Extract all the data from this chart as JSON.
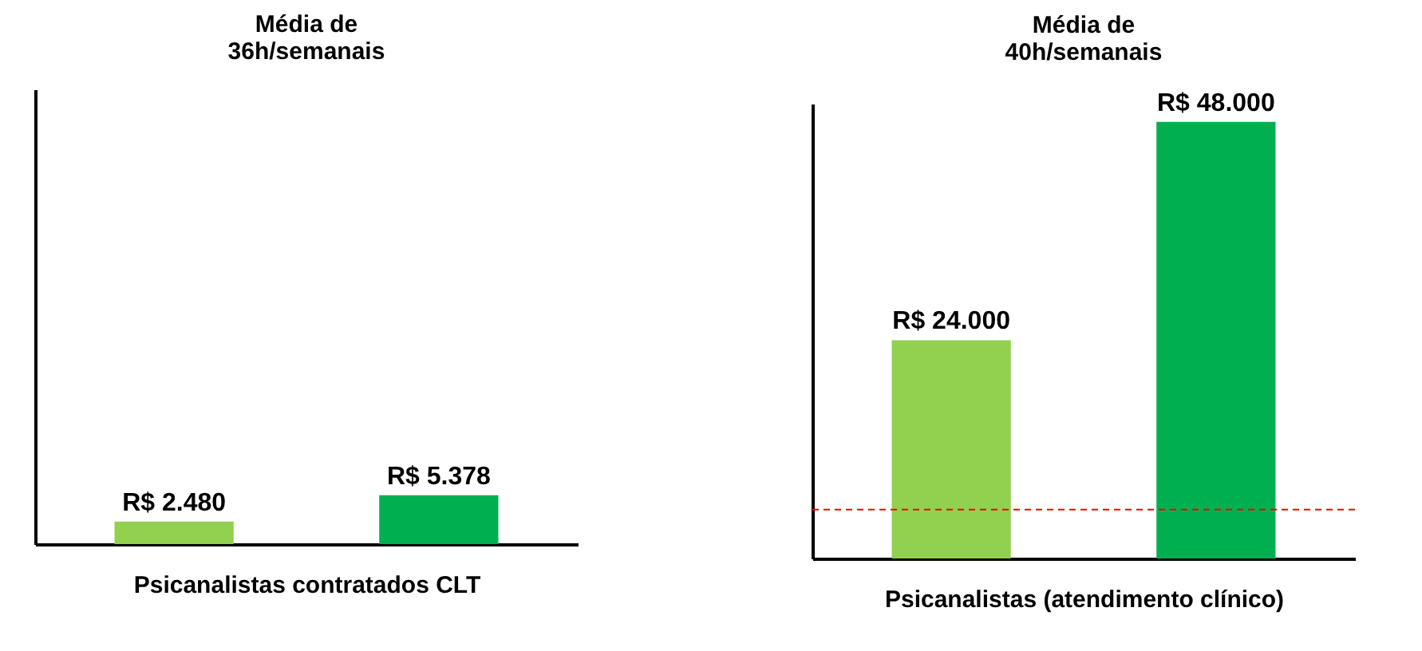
{
  "chart_data": [
    {
      "type": "bar",
      "title": "Média de\n36h/semanais",
      "xlabel": "Psicanalistas contratados CLT",
      "categories": [
        null,
        null
      ],
      "values": [
        2480,
        5378
      ],
      "colors": [
        "#92d050",
        "#00b050"
      ],
      "value_labels": [
        "R$ 2.480",
        "R$ 5.378"
      ],
      "grid": false
    },
    {
      "type": "bar",
      "title": "Média de\n40h/semanais",
      "xlabel": "Psicanalistas (atendimento clínico)",
      "categories": [
        null,
        null
      ],
      "values": [
        24000,
        48000
      ],
      "colors": [
        "#92d050",
        "#00b050"
      ],
      "value_labels": [
        "R$ 24.000",
        "R$ 48.000"
      ],
      "grid": false,
      "ref_lines": [
        {
          "axis": "y",
          "value": 5378,
          "color": "#ff0000",
          "line_style": "dashed"
        }
      ]
    }
  ]
}
